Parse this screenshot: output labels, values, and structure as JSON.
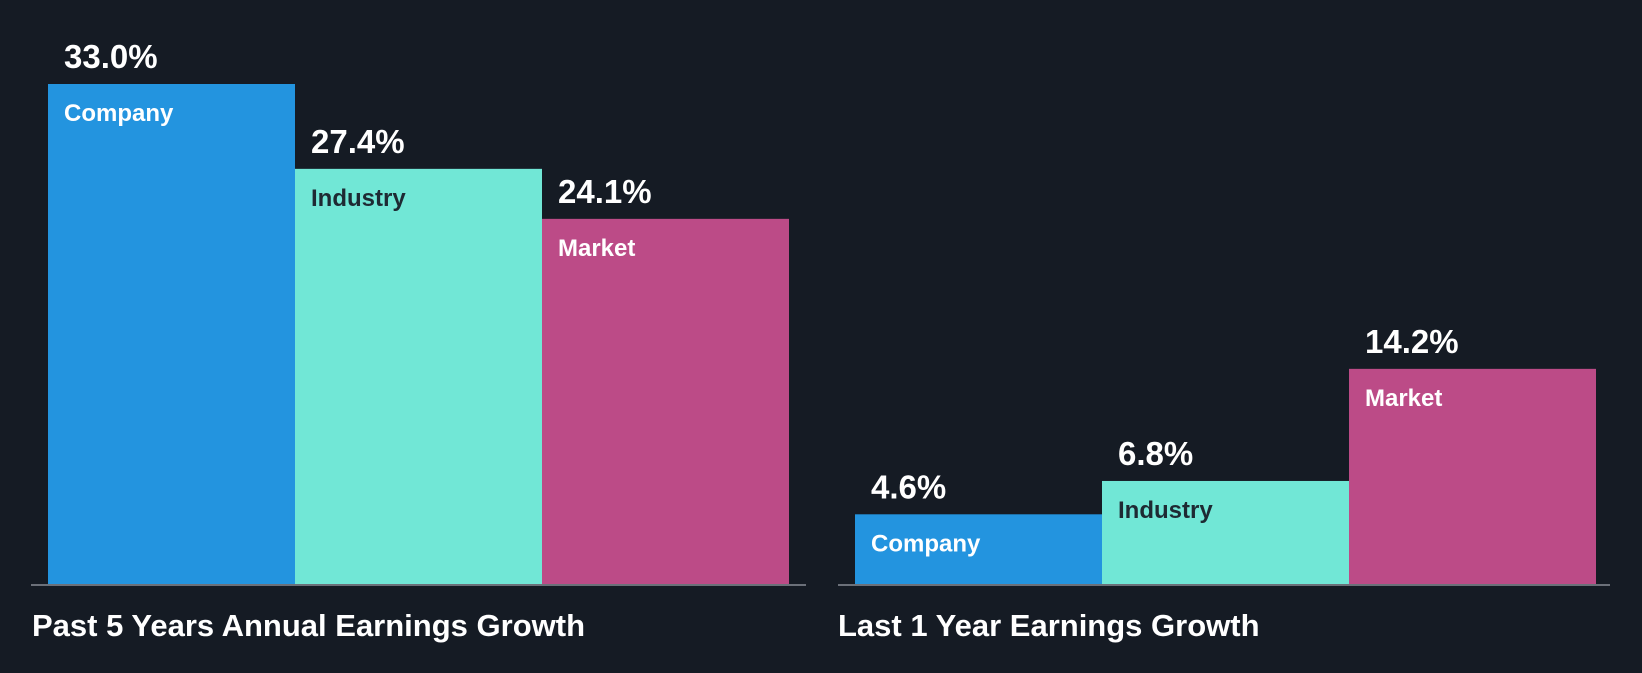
{
  "colors": {
    "background": "#151b24",
    "baseline": "#6b7079",
    "value_text": "#ffffff",
    "title_text": "#ffffff"
  },
  "chart_data": [
    {
      "type": "bar",
      "title": "Past 5 Years Annual Earnings Growth",
      "categories": [
        "Company",
        "Industry",
        "Market"
      ],
      "values": [
        33.0,
        27.4,
        24.1
      ],
      "value_labels": [
        "33.0%",
        "27.4%",
        "24.1%"
      ],
      "bar_colors": [
        "#2394df",
        "#71e7d6",
        "#bc4b87"
      ],
      "category_label_colors": [
        "#ffffff",
        "#1e2a33",
        "#ffffff"
      ],
      "unit": "%",
      "ylim": [
        0,
        33.0
      ],
      "grid": false,
      "legend": "none"
    },
    {
      "type": "bar",
      "title": "Last 1 Year Earnings Growth",
      "categories": [
        "Company",
        "Industry",
        "Market"
      ],
      "values": [
        4.6,
        6.8,
        14.2
      ],
      "value_labels": [
        "4.6%",
        "6.8%",
        "14.2%"
      ],
      "bar_colors": [
        "#2394df",
        "#71e7d6",
        "#bc4b87"
      ],
      "category_label_colors": [
        "#ffffff",
        "#1e2a33",
        "#ffffff"
      ],
      "unit": "%",
      "ylim": [
        0,
        33.0
      ],
      "grid": false,
      "legend": "none"
    }
  ]
}
